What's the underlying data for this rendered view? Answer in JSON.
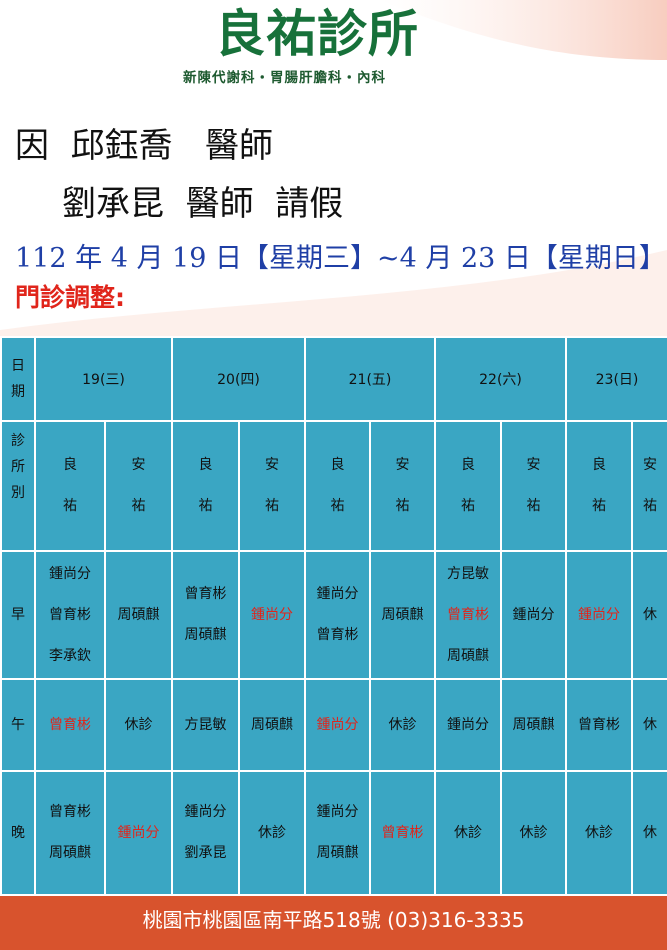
{
  "header": {
    "logo": "良祐診所",
    "tagline": "新陳代謝科・胃腸肝膽科・內科"
  },
  "notice": {
    "line1": "因  邱鈺喬   醫師",
    "line2": "劉承昆  醫師  請假",
    "date_range": "112 年 4 月 19 日【星期三】~4 月 23 日【星期日】",
    "adjust_label": "門診調整:"
  },
  "table": {
    "row_labels": {
      "date": "日期",
      "clinic": "診所別",
      "morning": "早",
      "afternoon": "午",
      "evening": "晚"
    },
    "clinic_liang": "良祐",
    "clinic_an": "安祐",
    "days": [
      {
        "label": "19(三)",
        "morning": {
          "liang": [
            "鍾尚分",
            "曾育彬",
            "李承欽"
          ],
          "an": [
            "周碩麒"
          ]
        },
        "afternoon": {
          "liang": [
            "曾育彬"
          ],
          "an": [
            "休診"
          ]
        },
        "evening": {
          "liang": [
            "曾育彬",
            "周碩麒"
          ],
          "an": [
            "鍾尚分"
          ]
        }
      },
      {
        "label": "20(四)",
        "morning": {
          "liang": [
            "曾育彬",
            "周碩麒"
          ],
          "an": [
            "鍾尚分"
          ]
        },
        "afternoon": {
          "liang": [
            "方昆敏"
          ],
          "an": [
            "周碩麒"
          ]
        },
        "evening": {
          "liang": [
            "鍾尚分",
            "劉承昆"
          ],
          "an": [
            "休診"
          ]
        }
      },
      {
        "label": "21(五)",
        "morning": {
          "liang": [
            "鍾尚分",
            "曾育彬"
          ],
          "an": [
            "周碩麒"
          ]
        },
        "afternoon": {
          "liang": [
            "鍾尚分"
          ],
          "an": [
            "休診"
          ]
        },
        "evening": {
          "liang": [
            "鍾尚分",
            "周碩麒"
          ],
          "an": [
            "曾育彬"
          ]
        }
      },
      {
        "label": "22(六)",
        "morning": {
          "liang": [
            "方昆敏",
            "曾育彬",
            "周碩麒"
          ],
          "an": [
            "鍾尚分"
          ]
        },
        "afternoon": {
          "liang": [
            "鍾尚分"
          ],
          "an": [
            "周碩麒"
          ]
        },
        "evening": {
          "liang": [
            "休診"
          ],
          "an": [
            "休診"
          ]
        }
      },
      {
        "label": "23(日)",
        "morning": {
          "liang": [
            "鍾尚分"
          ],
          "an": [
            "休"
          ]
        },
        "afternoon": {
          "liang": [
            "曾育彬"
          ],
          "an": [
            "休"
          ]
        },
        "evening": {
          "liang": [
            "休診"
          ],
          "an": [
            "休"
          ]
        }
      }
    ]
  },
  "footer": {
    "address": "桃園市桃園區南平路518號 (03)316-3335"
  },
  "colors": {
    "logo_green": "#17713a",
    "table_blue": "#3aa6c3",
    "highlight_red": "#e0251b",
    "footer_orange": "#d8532d",
    "date_blue": "#1f3fa6"
  }
}
